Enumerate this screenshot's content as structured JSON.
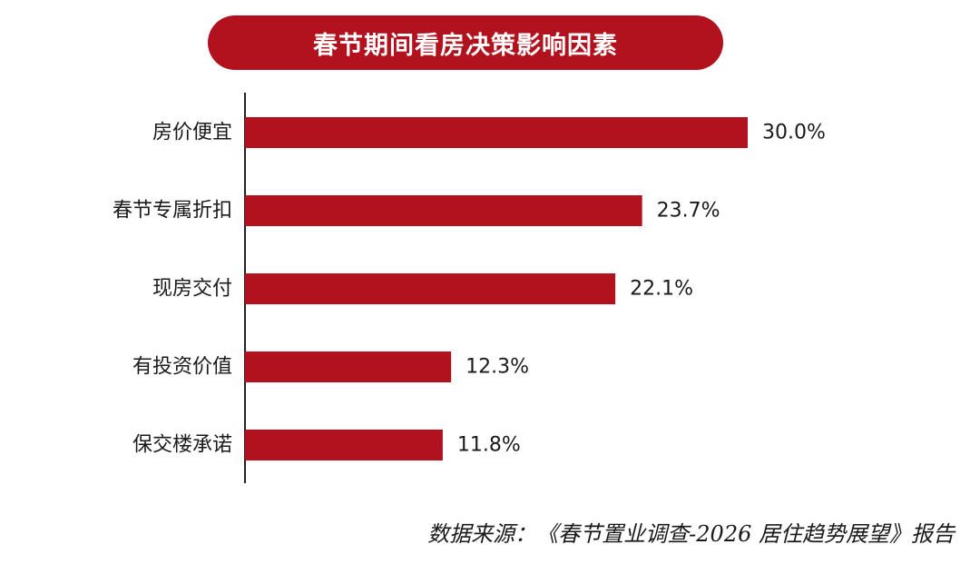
{
  "chart_data": {
    "type": "bar",
    "orientation": "horizontal",
    "title": "春节期间看房决策影响因素",
    "categories": [
      "房价便宜",
      "春节专属折扣",
      "现房交付",
      "有投资价值",
      "保交楼承诺"
    ],
    "values": [
      30.0,
      23.7,
      22.1,
      12.3,
      11.8
    ],
    "value_labels": [
      "30.0%",
      "23.7%",
      "22.1%",
      "12.3%",
      "11.8%"
    ],
    "unit": "%",
    "xlabel": "",
    "ylabel": "",
    "xlim": [
      0,
      30
    ],
    "grid": false,
    "bar_color": "#b1121d"
  },
  "source_note": "数据来源：《春节置业调查-2026 居住趋势展望》报告",
  "colors": {
    "accent": "#b1121d",
    "title_text": "#ffffff"
  }
}
